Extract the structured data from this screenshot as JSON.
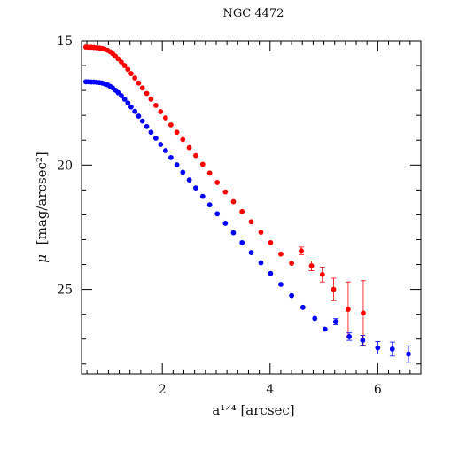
{
  "chart_data": {
    "type": "scatter",
    "title": "NGC 4472",
    "xlabel": "a¹ᐟ⁴ [arcsec]",
    "ylabel_symbol": "μ",
    "ylabel_unit": "[mag/arcsec²]",
    "xlim": [
      0.5,
      6.8
    ],
    "ylim": [
      28.4,
      15
    ],
    "y_inverted": true,
    "grid": false,
    "legend": "none",
    "x_ticks": [
      2,
      4,
      6
    ],
    "y_ticks": [
      15,
      20,
      25
    ],
    "series": [
      {
        "color": "#ff0000",
        "points": [
          {
            "x": 0.58,
            "y": 15.25
          },
          {
            "x": 0.63,
            "y": 15.26
          },
          {
            "x": 0.68,
            "y": 15.26
          },
          {
            "x": 0.73,
            "y": 15.27
          },
          {
            "x": 0.78,
            "y": 15.28
          },
          {
            "x": 0.83,
            "y": 15.29
          },
          {
            "x": 0.88,
            "y": 15.31
          },
          {
            "x": 0.93,
            "y": 15.34
          },
          {
            "x": 0.98,
            "y": 15.38
          },
          {
            "x": 1.03,
            "y": 15.44
          },
          {
            "x": 1.08,
            "y": 15.52
          },
          {
            "x": 1.13,
            "y": 15.62
          },
          {
            "x": 1.18,
            "y": 15.73
          },
          {
            "x": 1.24,
            "y": 15.86
          },
          {
            "x": 1.3,
            "y": 16.0
          },
          {
            "x": 1.36,
            "y": 16.15
          },
          {
            "x": 1.42,
            "y": 16.32
          },
          {
            "x": 1.49,
            "y": 16.5
          },
          {
            "x": 1.56,
            "y": 16.7
          },
          {
            "x": 1.63,
            "y": 16.9
          },
          {
            "x": 1.71,
            "y": 17.12
          },
          {
            "x": 1.79,
            "y": 17.35
          },
          {
            "x": 1.88,
            "y": 17.6
          },
          {
            "x": 1.97,
            "y": 17.85
          },
          {
            "x": 2.06,
            "y": 18.1
          },
          {
            "x": 2.16,
            "y": 18.38
          },
          {
            "x": 2.27,
            "y": 18.68
          },
          {
            "x": 2.38,
            "y": 18.97
          },
          {
            "x": 2.5,
            "y": 19.3
          },
          {
            "x": 2.62,
            "y": 19.62
          },
          {
            "x": 2.75,
            "y": 19.97
          },
          {
            "x": 2.88,
            "y": 20.32
          },
          {
            "x": 3.02,
            "y": 20.7
          },
          {
            "x": 3.17,
            "y": 21.08
          },
          {
            "x": 3.32,
            "y": 21.47
          },
          {
            "x": 3.48,
            "y": 21.87
          },
          {
            "x": 3.65,
            "y": 22.28
          },
          {
            "x": 3.83,
            "y": 22.7
          },
          {
            "x": 4.01,
            "y": 23.12
          },
          {
            "x": 4.2,
            "y": 23.58
          },
          {
            "x": 4.4,
            "y": 23.95
          },
          {
            "x": 4.58,
            "y": 23.45,
            "err": 0.15
          },
          {
            "x": 4.77,
            "y": 24.05,
            "err": 0.2
          },
          {
            "x": 4.97,
            "y": 24.4,
            "err": 0.3
          },
          {
            "x": 5.18,
            "y": 25.0,
            "err": 0.45
          },
          {
            "x": 5.45,
            "y": 25.8,
            "err": 1.1
          },
          {
            "x": 5.73,
            "y": 25.95,
            "err": 1.3
          }
        ]
      },
      {
        "color": "#0000ff",
        "points": [
          {
            "x": 0.58,
            "y": 16.65
          },
          {
            "x": 0.63,
            "y": 16.65
          },
          {
            "x": 0.68,
            "y": 16.66
          },
          {
            "x": 0.73,
            "y": 16.66
          },
          {
            "x": 0.78,
            "y": 16.67
          },
          {
            "x": 0.83,
            "y": 16.68
          },
          {
            "x": 0.88,
            "y": 16.7
          },
          {
            "x": 0.93,
            "y": 16.73
          },
          {
            "x": 0.98,
            "y": 16.77
          },
          {
            "x": 1.03,
            "y": 16.83
          },
          {
            "x": 1.08,
            "y": 16.9
          },
          {
            "x": 1.13,
            "y": 16.99
          },
          {
            "x": 1.18,
            "y": 17.09
          },
          {
            "x": 1.24,
            "y": 17.21
          },
          {
            "x": 1.3,
            "y": 17.35
          },
          {
            "x": 1.36,
            "y": 17.5
          },
          {
            "x": 1.42,
            "y": 17.66
          },
          {
            "x": 1.49,
            "y": 17.84
          },
          {
            "x": 1.56,
            "y": 18.03
          },
          {
            "x": 1.63,
            "y": 18.23
          },
          {
            "x": 1.71,
            "y": 18.45
          },
          {
            "x": 1.79,
            "y": 18.68
          },
          {
            "x": 1.88,
            "y": 18.92
          },
          {
            "x": 1.97,
            "y": 19.17
          },
          {
            "x": 2.06,
            "y": 19.42
          },
          {
            "x": 2.16,
            "y": 19.7
          },
          {
            "x": 2.27,
            "y": 19.99
          },
          {
            "x": 2.38,
            "y": 20.29
          },
          {
            "x": 2.5,
            "y": 20.6
          },
          {
            "x": 2.62,
            "y": 20.92
          },
          {
            "x": 2.75,
            "y": 21.26
          },
          {
            "x": 2.88,
            "y": 21.6
          },
          {
            "x": 3.02,
            "y": 21.96
          },
          {
            "x": 3.17,
            "y": 22.34
          },
          {
            "x": 3.32,
            "y": 22.72
          },
          {
            "x": 3.48,
            "y": 23.12
          },
          {
            "x": 3.65,
            "y": 23.52
          },
          {
            "x": 3.83,
            "y": 23.93
          },
          {
            "x": 4.01,
            "y": 24.36
          },
          {
            "x": 4.2,
            "y": 24.8
          },
          {
            "x": 4.4,
            "y": 25.25
          },
          {
            "x": 4.61,
            "y": 25.72
          },
          {
            "x": 4.83,
            "y": 26.17
          },
          {
            "x": 5.02,
            "y": 26.6
          },
          {
            "x": 5.22,
            "y": 26.3,
            "err": 0.12
          },
          {
            "x": 5.47,
            "y": 26.9,
            "err": 0.15
          },
          {
            "x": 5.72,
            "y": 27.05,
            "err": 0.2
          },
          {
            "x": 6.0,
            "y": 27.35,
            "err": 0.25
          },
          {
            "x": 6.27,
            "y": 27.4,
            "err": 0.28
          },
          {
            "x": 6.57,
            "y": 27.6,
            "err": 0.33
          }
        ]
      }
    ]
  }
}
